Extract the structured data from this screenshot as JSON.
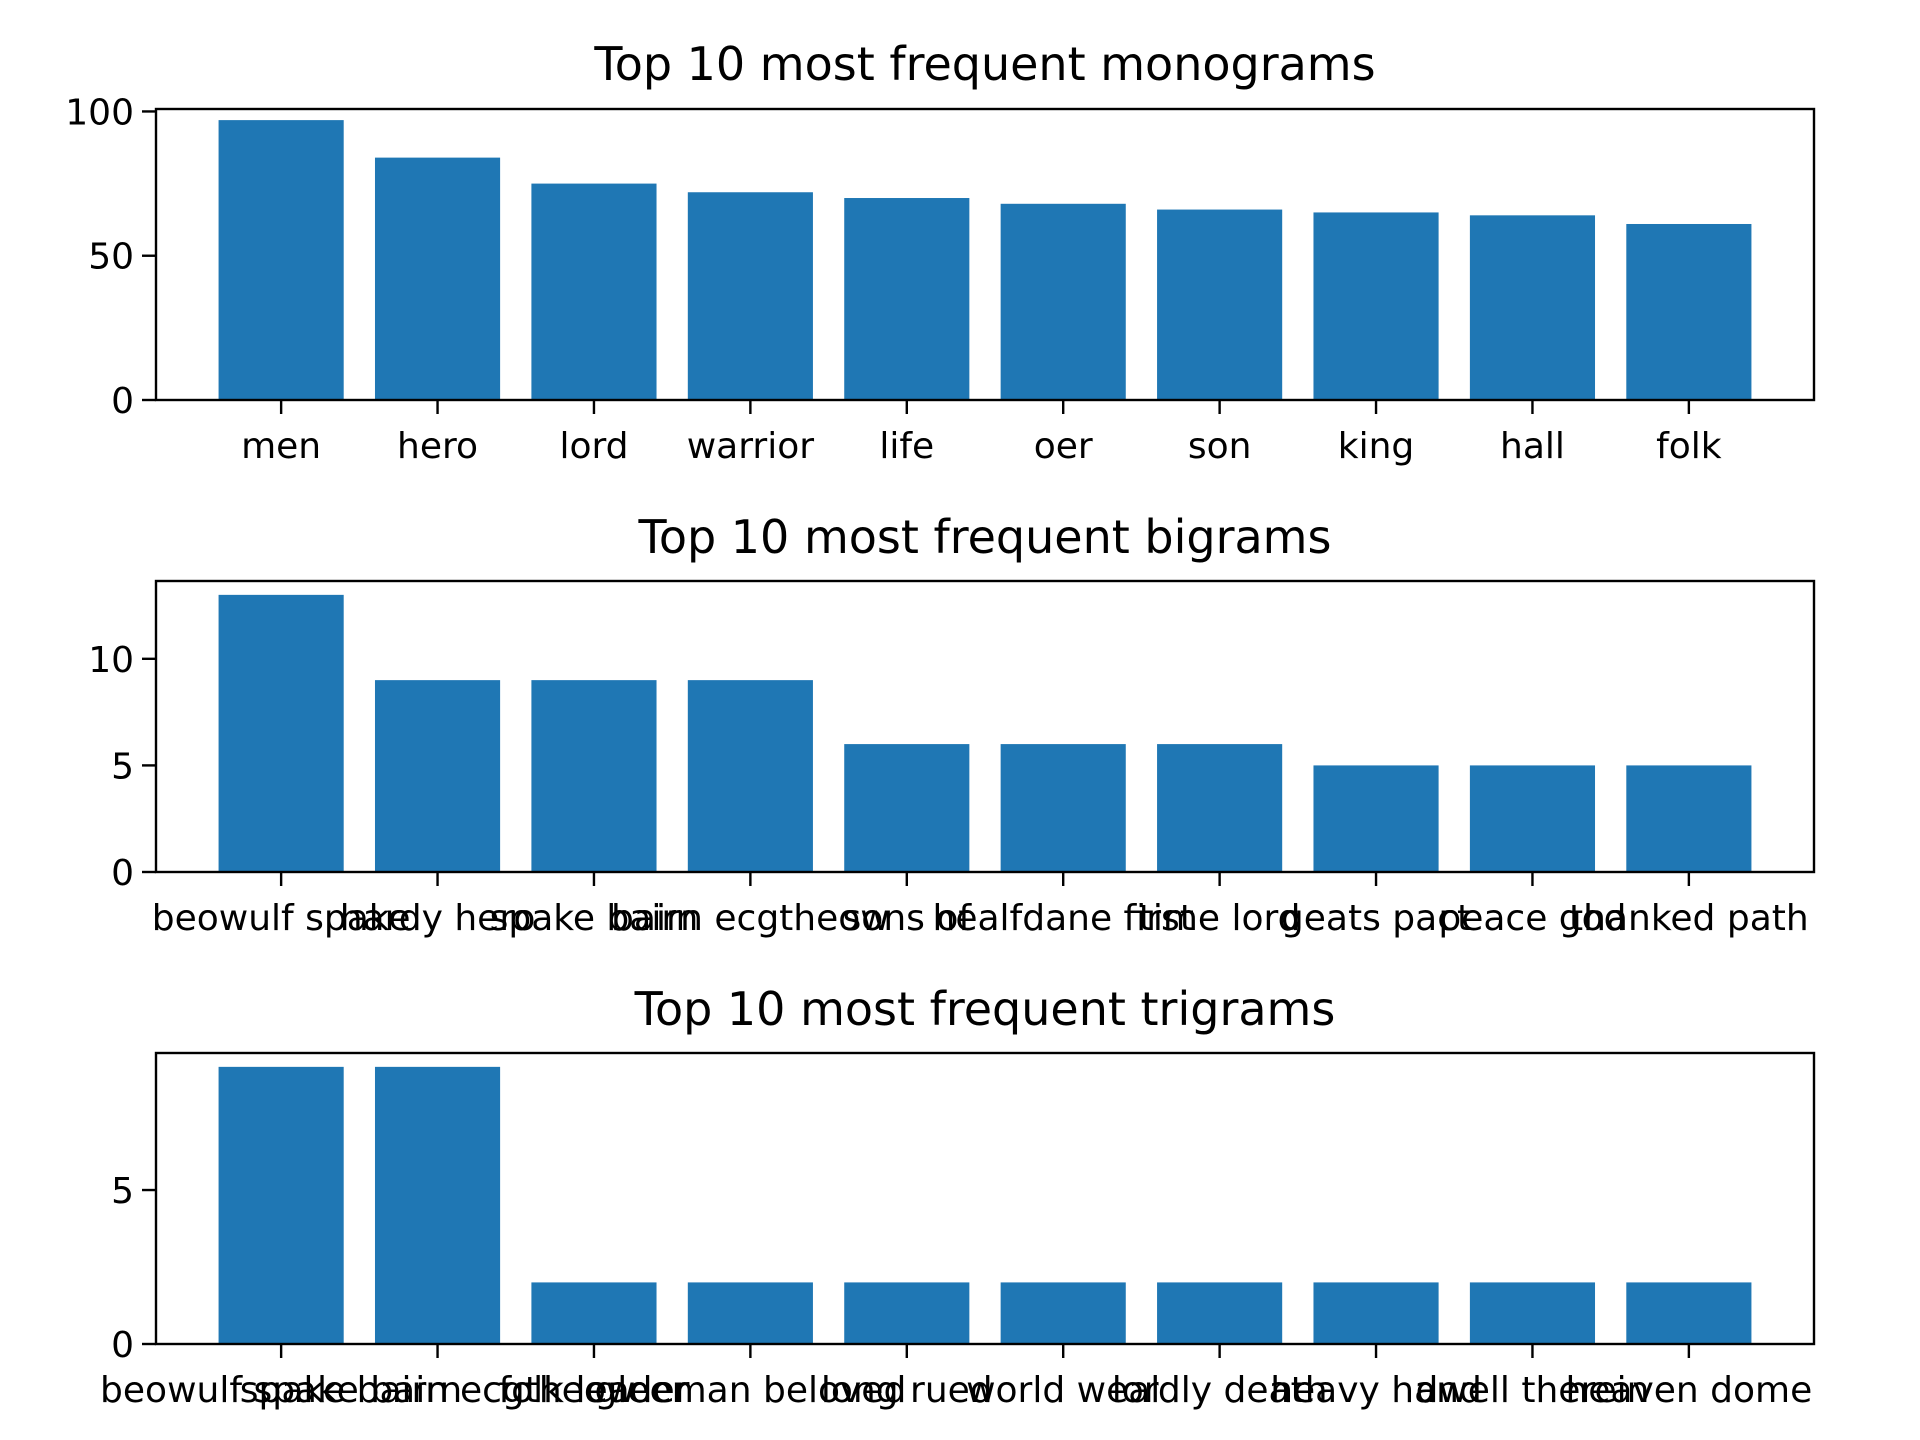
{
  "colors": {
    "bar": "#1f77b4",
    "axis": "#000000",
    "background": "#ffffff"
  },
  "chart_data": [
    {
      "type": "bar",
      "title": "Top 10 most frequent monograms",
      "categories": [
        "men",
        "hero",
        "lord",
        "warrior",
        "life",
        "oer",
        "son",
        "king",
        "hall",
        "folk"
      ],
      "values": [
        97,
        84,
        75,
        72,
        70,
        68,
        66,
        65,
        64,
        61
      ],
      "xlabel": "",
      "ylabel": "",
      "ylim": [
        0,
        100.85
      ],
      "yticks": [
        0,
        50,
        100
      ],
      "grid": false
    },
    {
      "type": "bar",
      "title": "Top 10 most frequent bigrams",
      "categories": [
        "beowulf spake",
        "hardy hero",
        "spake bairn",
        "bairn ecgtheow",
        "sons of",
        "healfdane first",
        "time lord",
        "geats pact",
        "peace god",
        "thanked path"
      ],
      "values": [
        13,
        9,
        9,
        9,
        6,
        6,
        6,
        5,
        5,
        5
      ],
      "xlabel": "",
      "ylabel": "",
      "ylim": [
        0,
        13.65
      ],
      "yticks": [
        0,
        5,
        10
      ],
      "grid": false
    },
    {
      "type": "bar",
      "title": "Top 10 most frequent trigrams",
      "categories": [
        "beowulf spake bairn",
        "spake bairn ecgtheow",
        "folk leader",
        "gleeman beloved",
        "long rued",
        "world weal",
        "lordly death",
        "heavy hand",
        "dwell therein",
        "heaven dome"
      ],
      "values": [
        9,
        9,
        2,
        2,
        2,
        2,
        2,
        2,
        2,
        2
      ],
      "xlabel": "",
      "ylabel": "",
      "ylim": [
        0,
        9.45
      ],
      "yticks": [
        0,
        5
      ],
      "grid": false
    }
  ]
}
